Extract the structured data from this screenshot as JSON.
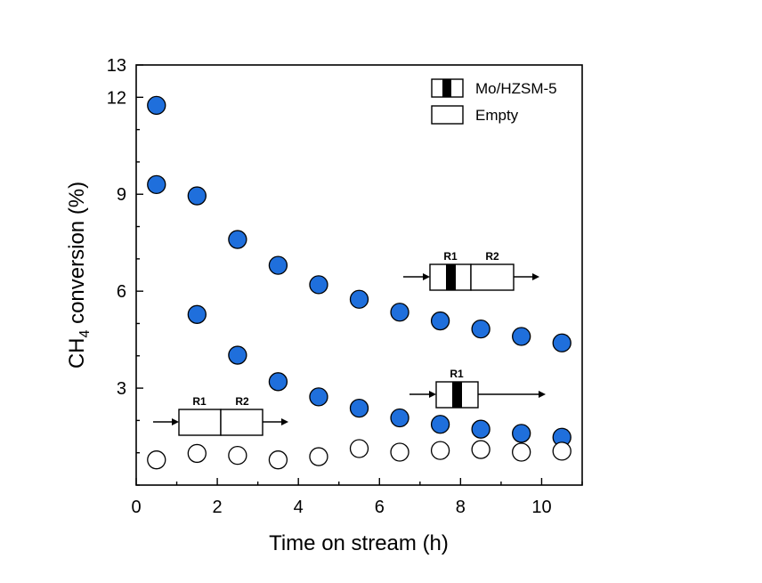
{
  "chart_data": {
    "type": "scatter",
    "title": "",
    "xlabel": "Time on stream (h)",
    "ylabel": {
      "main": "CH",
      "sub": "4",
      "rest": " conversion (%)"
    },
    "xlim": [
      0,
      11
    ],
    "ylim": [
      0,
      13
    ],
    "xticks": [
      0,
      2,
      4,
      6,
      8,
      10
    ],
    "yticks": [
      3,
      6,
      9,
      12,
      13
    ],
    "grid": false,
    "legend_position": "top-right",
    "legend": [
      {
        "label": "Mo/HZSM-5",
        "symbol": "reactor-catalyst"
      },
      {
        "label": "Empty",
        "symbol": "reactor-empty"
      }
    ],
    "series": [
      {
        "color": "#1f6fdc",
        "x": [
          0.5,
          1.5,
          2.5,
          3.5,
          4.5,
          5.5,
          6.5,
          7.5,
          8.5,
          9.5,
          10.5
        ],
        "y": [
          9.3,
          8.95,
          7.6,
          6.8,
          6.2,
          5.75,
          5.35,
          5.08,
          4.83,
          4.6,
          4.4
        ]
      },
      {
        "color": "#1f6fdc",
        "x": [
          0.5,
          1.5,
          2.5,
          3.5,
          4.5,
          5.5,
          6.5,
          7.5,
          8.5,
          9.5,
          10.5
        ],
        "y": [
          11.75,
          5.28,
          4.02,
          3.2,
          2.73,
          2.38,
          2.08,
          1.88,
          1.73,
          1.6,
          1.48
        ]
      },
      {
        "color": "#ffffff",
        "x": [
          0.5,
          1.5,
          2.5,
          3.5,
          4.5,
          5.5,
          6.5,
          7.5,
          8.5,
          9.5,
          10.5
        ],
        "y": [
          0.78,
          0.98,
          0.92,
          0.78,
          0.88,
          1.13,
          1.02,
          1.07,
          1.1,
          1.02,
          1.05
        ]
      }
    ],
    "annotations": [
      {
        "id": "r1r2-upper",
        "labels": [
          "R1",
          "R2"
        ],
        "catalyst_in": "R1",
        "near_series": 0
      },
      {
        "id": "r1-lower",
        "labels": [
          "R1"
        ],
        "catalyst_in": "R1",
        "near_series": 1
      },
      {
        "id": "r1r2-empty",
        "labels": [
          "R1",
          "R2"
        ],
        "catalyst_in": "none",
        "near_series": 2
      }
    ]
  }
}
